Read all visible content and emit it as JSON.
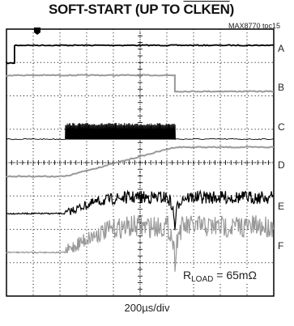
{
  "chart_data": {
    "type": "line",
    "title_pre": "SOFT-START (UP TO ",
    "title_signal": "CLKEN",
    "title_post": ")",
    "figure_id": "MAX8770 toc15",
    "xlabel": "200µs/div",
    "x_divisions": 10,
    "y_divisions": 8,
    "grid": true,
    "channels": [
      {
        "name": "A",
        "color": "#000000",
        "kind": "step-up",
        "edge_div": 0.3
      },
      {
        "name": "B",
        "color": "#999999",
        "kind": "step-down",
        "edge_div": 6.3
      },
      {
        "name": "C",
        "color": "#000000",
        "kind": "burst",
        "start_div": 2.2,
        "stop_div": 6.3
      },
      {
        "name": "D",
        "color": "#999999",
        "kind": "soft-start-ramp",
        "ramp_start_div": 2.2,
        "ramp_end_div": 6.3
      },
      {
        "name": "E",
        "color": "#000000",
        "kind": "ramp-with-ripple",
        "ramp_start_div": 2.2,
        "ramp_end_div": 4.8,
        "dip_div": 6.3
      },
      {
        "name": "F",
        "color": "#999999",
        "kind": "ramp-with-ripple",
        "ramp_start_div": 2.2,
        "ramp_end_div": 4.8,
        "dip_div": 6.3
      }
    ],
    "annotation": {
      "prefix": "R",
      "sub": "LOAD",
      "suffix": " = 65mΩ"
    }
  }
}
